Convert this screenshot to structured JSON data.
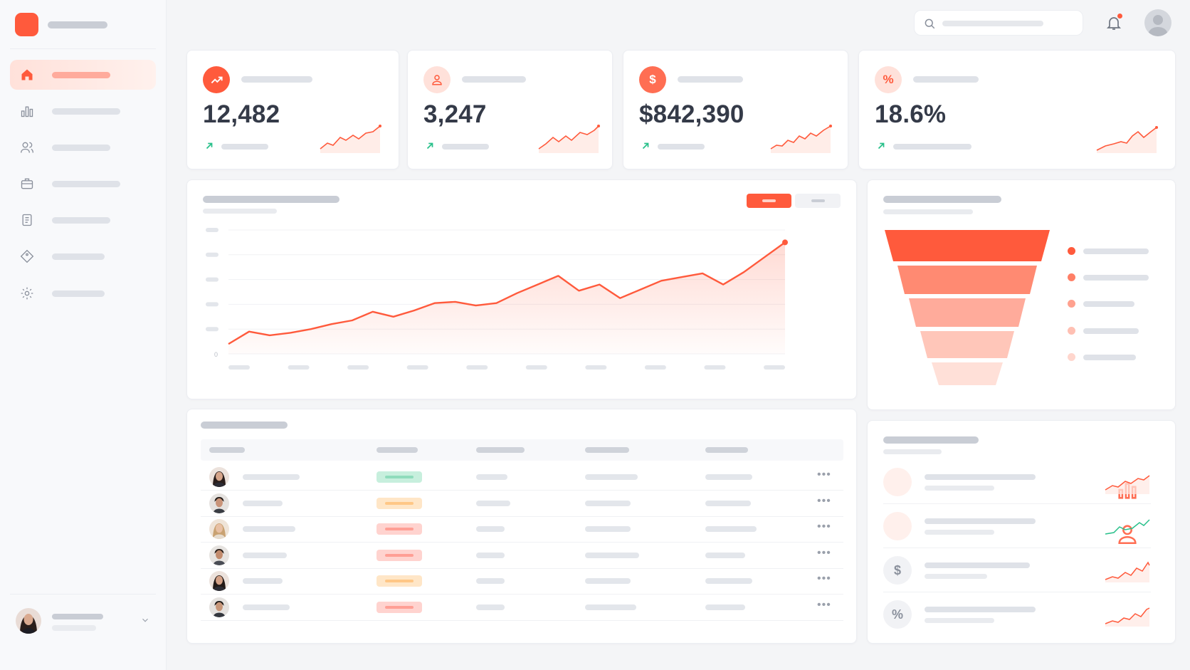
{
  "colors": {
    "accent": "#ff5a3c",
    "accent_soft": "#ffe1da",
    "positive": "#28c08a",
    "page_bg": "#f4f5f7",
    "card_bg": "#ffffff"
  },
  "sidebar": {
    "logo_icon": "brand-logo-icon",
    "items": [
      {
        "icon": "home-icon",
        "active": true
      },
      {
        "icon": "bar-chart-icon",
        "active": false
      },
      {
        "icon": "users-icon",
        "active": false
      },
      {
        "icon": "briefcase-icon",
        "active": false
      },
      {
        "icon": "document-icon",
        "active": false
      },
      {
        "icon": "tag-icon",
        "active": false
      },
      {
        "icon": "gear-icon",
        "active": false
      }
    ]
  },
  "topbar": {
    "search_icon": "search-icon",
    "notification_icon": "bell-icon",
    "has_unread_notifications": true
  },
  "kpis": [
    {
      "icon": "trending-up-icon",
      "icon_text": "",
      "value": "12,482",
      "trend_icon": "arrow-up-right-icon"
    },
    {
      "icon": "user-icon",
      "icon_text": "",
      "value": "3,247",
      "trend_icon": "arrow-up-right-icon"
    },
    {
      "icon": "dollar-icon",
      "icon_text": "$",
      "value": "$842,390",
      "trend_icon": "arrow-up-right-icon"
    },
    {
      "icon": "percent-icon",
      "icon_text": "%",
      "value": "18.6%",
      "trend_icon": "arrow-up-right-icon"
    }
  ],
  "chart_data": {
    "type": "area",
    "y_tick_labels": [
      "0"
    ],
    "x_tick_count": 10,
    "y_tick_count": 6,
    "grid": true,
    "series": [
      {
        "values": [
          8,
          18,
          15,
          17,
          20,
          24,
          27,
          34,
          30,
          35,
          41,
          42,
          39,
          41,
          49,
          56,
          63,
          51,
          56,
          45,
          52,
          59,
          62,
          65,
          56,
          66,
          78,
          90
        ]
      }
    ],
    "ylim": [
      0,
      100
    ],
    "color": "#ff5a3c"
  },
  "funnel": {
    "stages": 5,
    "colors": [
      "#ff5a3c",
      "#ff8a72",
      "#ffab9b",
      "#ffc6b9",
      "#ffe0d8"
    ]
  },
  "table": {
    "rows": [
      {
        "status_color": "#c7efdd",
        "status_fill": "#8fdcbc"
      },
      {
        "status_color": "#ffe6c7",
        "status_fill": "#ffc786"
      },
      {
        "status_color": "#ffd3cf",
        "status_fill": "#ff9f95"
      },
      {
        "status_color": "#ffd3cf",
        "status_fill": "#ff9f95"
      },
      {
        "status_color": "#ffe6c7",
        "status_fill": "#ffc786"
      },
      {
        "status_color": "#ffd3cf",
        "status_fill": "#ff9f95"
      }
    ],
    "more_icon": "more-horizontal-icon"
  },
  "metrics": [
    {
      "icon": "bar-chart-icon",
      "icon_text": "",
      "trend_color": "#ff5a3c"
    },
    {
      "icon": "user-icon",
      "icon_text": "",
      "trend_color": "#28c08a"
    },
    {
      "icon": "dollar-icon",
      "icon_text": "$",
      "trend_color": "#ff5a3c"
    },
    {
      "icon": "percent-icon",
      "icon_text": "%",
      "trend_color": "#ff5a3c"
    }
  ]
}
